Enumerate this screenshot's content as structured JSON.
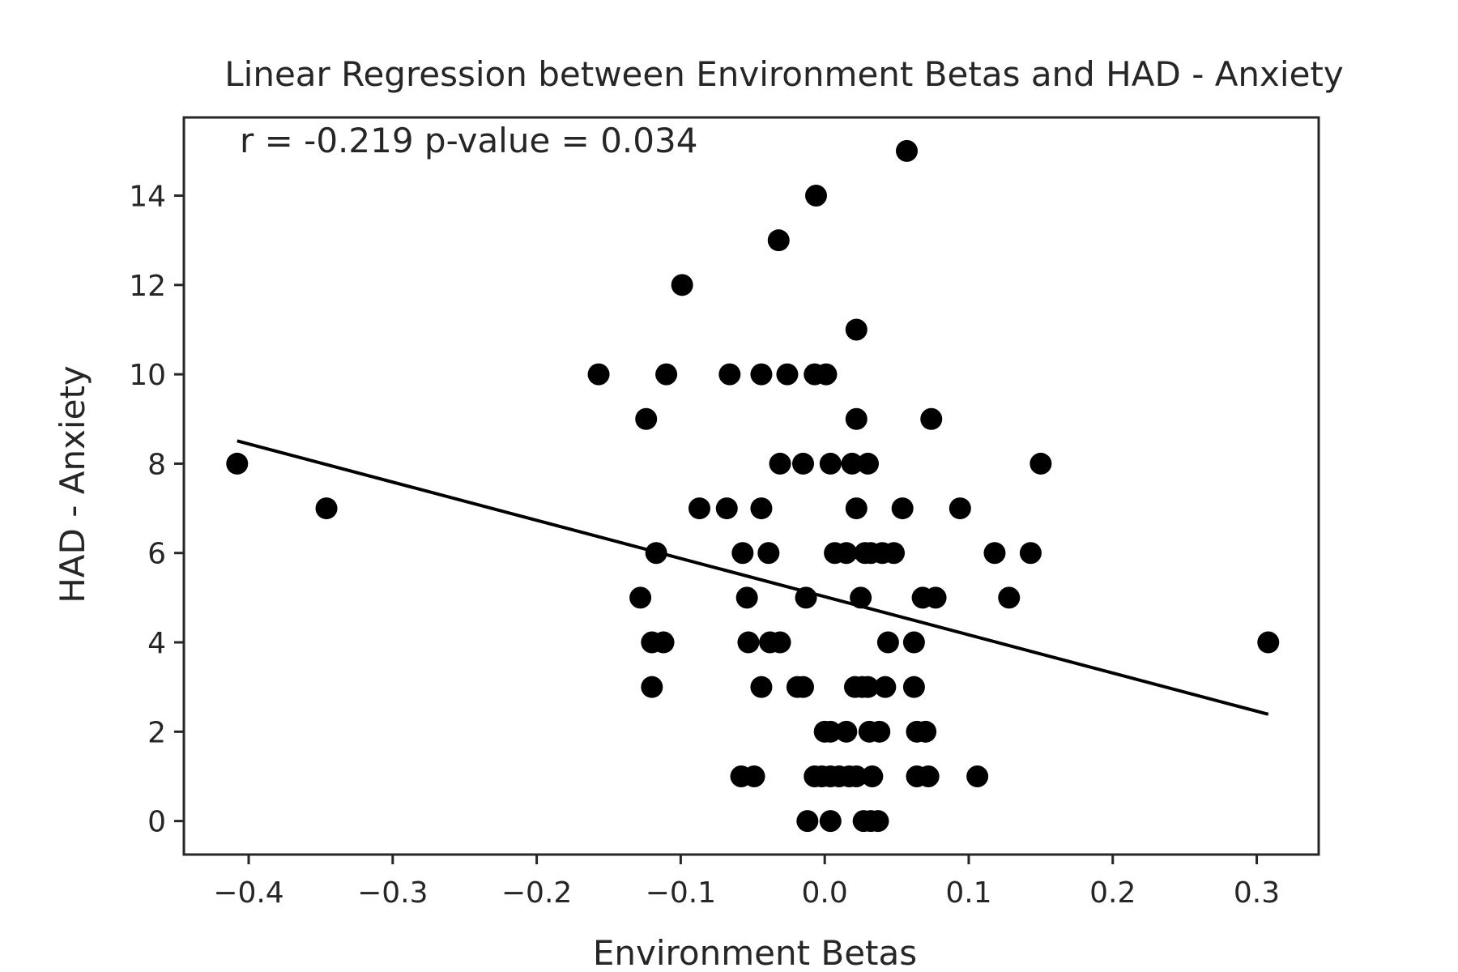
{
  "chart_data": {
    "type": "scatter",
    "title": "Linear Regression between Environment Betas and HAD - Anxiety",
    "xlabel": "Environment Betas",
    "ylabel": "HAD - Anxiety",
    "annotation": "r = -0.219  p-value = 0.034",
    "xlim": [
      -0.445,
      0.343
    ],
    "ylim": [
      -0.75,
      15.75
    ],
    "xticks": [
      -0.4,
      -0.3,
      -0.2,
      -0.1,
      0.0,
      0.1,
      0.2,
      0.3
    ],
    "xtick_labels": [
      "−0.4",
      "−0.3",
      "−0.2",
      "−0.1",
      "0.0",
      "0.1",
      "0.2",
      "0.3"
    ],
    "yticks": [
      0,
      2,
      4,
      6,
      8,
      10,
      12,
      14
    ],
    "ytick_labels": [
      "0",
      "2",
      "4",
      "6",
      "8",
      "10",
      "12",
      "14"
    ],
    "grid": false,
    "legend": false,
    "colors": {
      "points": "#000000",
      "fit_line": "#000000",
      "axes": "#262626"
    },
    "points": [
      {
        "x": -0.408,
        "y": 8
      },
      {
        "x": -0.346,
        "y": 7
      },
      {
        "x": -0.157,
        "y": 10
      },
      {
        "x": -0.124,
        "y": 9
      },
      {
        "x": -0.128,
        "y": 5
      },
      {
        "x": -0.117,
        "y": 6
      },
      {
        "x": -0.12,
        "y": 4
      },
      {
        "x": -0.112,
        "y": 4
      },
      {
        "x": -0.12,
        "y": 3
      },
      {
        "x": -0.11,
        "y": 10
      },
      {
        "x": -0.099,
        "y": 12
      },
      {
        "x": -0.087,
        "y": 7
      },
      {
        "x": -0.068,
        "y": 7
      },
      {
        "x": -0.066,
        "y": 10
      },
      {
        "x": -0.057,
        "y": 6
      },
      {
        "x": -0.054,
        "y": 5
      },
      {
        "x": -0.053,
        "y": 4
      },
      {
        "x": -0.058,
        "y": 1
      },
      {
        "x": -0.049,
        "y": 1
      },
      {
        "x": -0.044,
        "y": 10
      },
      {
        "x": -0.044,
        "y": 7
      },
      {
        "x": -0.044,
        "y": 3
      },
      {
        "x": -0.039,
        "y": 6
      },
      {
        "x": -0.038,
        "y": 4
      },
      {
        "x": -0.031,
        "y": 4
      },
      {
        "x": -0.032,
        "y": 13
      },
      {
        "x": -0.031,
        "y": 8
      },
      {
        "x": -0.026,
        "y": 10
      },
      {
        "x": -0.019,
        "y": 3
      },
      {
        "x": -0.015,
        "y": 3
      },
      {
        "x": -0.015,
        "y": 8
      },
      {
        "x": -0.013,
        "y": 5
      },
      {
        "x": -0.012,
        "y": 0
      },
      {
        "x": -0.006,
        "y": 14
      },
      {
        "x": -0.007,
        "y": 10
      },
      {
        "x": 0.001,
        "y": 10
      },
      {
        "x": -0.007,
        "y": 1
      },
      {
        "x": -0.002,
        "y": 1
      },
      {
        "x": 0.0,
        "y": 2
      },
      {
        "x": 0.004,
        "y": 2
      },
      {
        "x": 0.004,
        "y": 1
      },
      {
        "x": 0.004,
        "y": 0
      },
      {
        "x": 0.004,
        "y": 8
      },
      {
        "x": 0.007,
        "y": 6
      },
      {
        "x": 0.01,
        "y": 1
      },
      {
        "x": 0.015,
        "y": 6
      },
      {
        "x": 0.015,
        "y": 2
      },
      {
        "x": 0.017,
        "y": 1
      },
      {
        "x": 0.019,
        "y": 8
      },
      {
        "x": 0.021,
        "y": 3
      },
      {
        "x": 0.022,
        "y": 11
      },
      {
        "x": 0.022,
        "y": 9
      },
      {
        "x": 0.022,
        "y": 7
      },
      {
        "x": 0.022,
        "y": 1
      },
      {
        "x": 0.025,
        "y": 5
      },
      {
        "x": 0.026,
        "y": 3
      },
      {
        "x": 0.027,
        "y": 0
      },
      {
        "x": 0.028,
        "y": 6
      },
      {
        "x": 0.03,
        "y": 8
      },
      {
        "x": 0.03,
        "y": 3
      },
      {
        "x": 0.031,
        "y": 2
      },
      {
        "x": 0.032,
        "y": 6
      },
      {
        "x": 0.032,
        "y": 0
      },
      {
        "x": 0.033,
        "y": 1
      },
      {
        "x": 0.037,
        "y": 0
      },
      {
        "x": 0.038,
        "y": 2
      },
      {
        "x": 0.04,
        "y": 6
      },
      {
        "x": 0.042,
        "y": 3
      },
      {
        "x": 0.044,
        "y": 4
      },
      {
        "x": 0.048,
        "y": 6
      },
      {
        "x": 0.054,
        "y": 7
      },
      {
        "x": 0.057,
        "y": 15
      },
      {
        "x": 0.062,
        "y": 4
      },
      {
        "x": 0.062,
        "y": 3
      },
      {
        "x": 0.064,
        "y": 2
      },
      {
        "x": 0.064,
        "y": 1
      },
      {
        "x": 0.068,
        "y": 5
      },
      {
        "x": 0.07,
        "y": 2
      },
      {
        "x": 0.072,
        "y": 1
      },
      {
        "x": 0.074,
        "y": 9
      },
      {
        "x": 0.077,
        "y": 5
      },
      {
        "x": 0.094,
        "y": 7
      },
      {
        "x": 0.106,
        "y": 1
      },
      {
        "x": 0.118,
        "y": 6
      },
      {
        "x": 0.128,
        "y": 5
      },
      {
        "x": 0.143,
        "y": 6
      },
      {
        "x": 0.15,
        "y": 8
      },
      {
        "x": 0.308,
        "y": 4
      }
    ],
    "fit_line": {
      "x": [
        -0.408,
        0.308
      ],
      "y": [
        8.51,
        2.39
      ]
    }
  }
}
